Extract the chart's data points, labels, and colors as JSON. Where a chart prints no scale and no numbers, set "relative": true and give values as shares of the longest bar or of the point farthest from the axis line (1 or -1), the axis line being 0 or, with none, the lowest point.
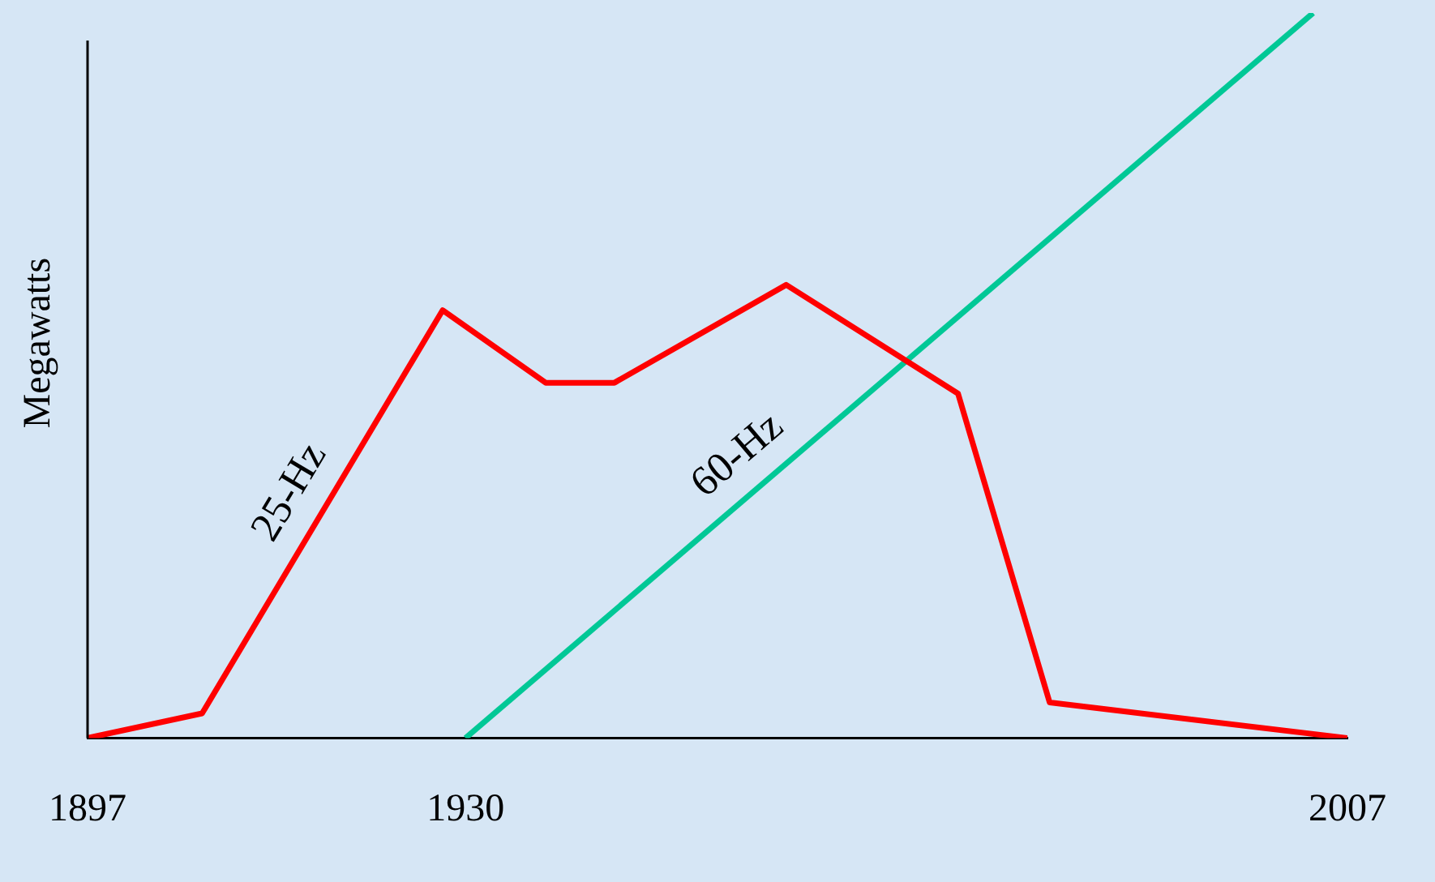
{
  "chart_data": {
    "type": "line",
    "ylabel": "Megawatts",
    "relative": true,
    "xlim": [
      1897,
      2007
    ],
    "xticks": [
      1897,
      1930,
      2007
    ],
    "grid": false,
    "legend": false,
    "marker": "none",
    "series": [
      {
        "name": "25-Hz",
        "color": "#ff0000",
        "x": [
          1897,
          1907,
          1928,
          1937,
          1943,
          1958,
          1973,
          1981,
          2007
        ],
        "values": [
          0,
          0.034,
          0.59,
          0.49,
          0.49,
          0.625,
          0.475,
          0.049,
          0
        ]
      },
      {
        "name": "60-Hz",
        "color": "#00c896",
        "x": [
          1930,
          2004
        ],
        "values": [
          0,
          1
        ]
      }
    ]
  }
}
